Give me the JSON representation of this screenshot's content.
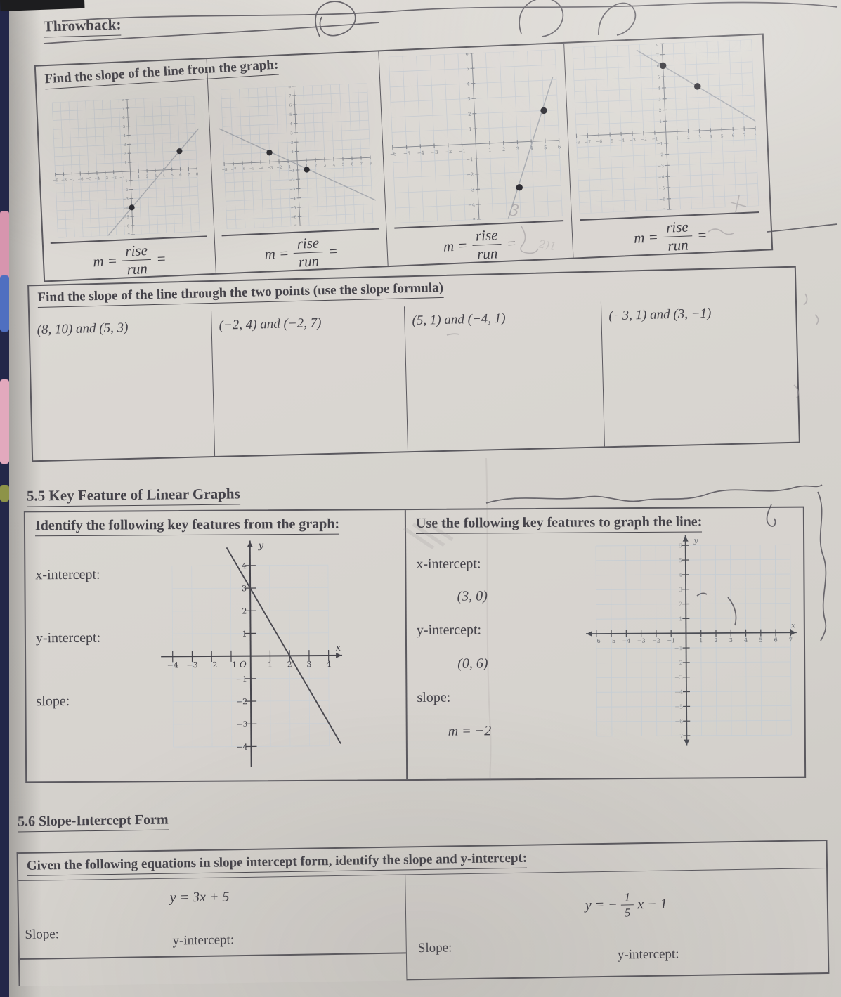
{
  "colors": {
    "paper": "#d8d5d0",
    "ink": "#45434a",
    "border": "#5b595f",
    "pen": "#55525a",
    "pencil": "#a39ea1",
    "grid": "#c6cbd1",
    "dot": "#2b2a30"
  },
  "throwback": {
    "heading": "Throwback:",
    "prompt": "Find the slope of the line from the graph:"
  },
  "formula": {
    "m": "m =",
    "rise": "rise",
    "run": "run",
    "eq": "="
  },
  "two_points": {
    "prompt": "Find the slope of the line through the two points (use the slope formula)",
    "cells": [
      "(8, 10) and (5, 3)",
      "(−2, 4) and (−2, 7)",
      "(5, 1) and (−4, 1)",
      "(−3, 1) and (3, −1)"
    ]
  },
  "section_55": {
    "heading": "5.5 Key Feature of Linear Graphs",
    "identify": {
      "prompt": "Identify the following key features from the graph:",
      "labels": [
        "x-intercept:",
        "y-intercept:",
        "slope:"
      ]
    },
    "use": {
      "prompt": "Use the following key features to graph the line:",
      "x_label": "x-intercept:",
      "x_value": "(3, 0)",
      "y_label": "y-intercept:",
      "y_value": "(0, 6)",
      "slope_label": "slope:",
      "slope_value": "m = −2"
    }
  },
  "section_56": {
    "heading": "5.6 Slope-Intercept Form",
    "prompt": "Given the following equations in slope intercept form, identify the slope and y-intercept:",
    "left": {
      "equation": "y = 3x + 5",
      "slope_label": "Slope:",
      "y_label": "y-intercept:"
    },
    "right": {
      "eq_pre": "y = −",
      "num": "1",
      "den": "5",
      "eq_post": "x − 1",
      "slope_label": "Slope:",
      "y_label": "y-intercept:"
    }
  },
  "annotations": {
    "pencil_a": "3",
    "pencil_b": "2)1"
  },
  "graphs": {
    "g1": {
      "xmin": -9,
      "xmax": 8,
      "ymin": -7,
      "ymax": 8,
      "line": [
        [
          -3.4,
          -7.4
        ],
        [
          8.4,
          4.4
        ]
      ],
      "dots": [
        [
          0,
          -4
        ],
        [
          6,
          2
        ]
      ],
      "fs": 6,
      "tickLen": 3,
      "gridColor": "#c6cbd1",
      "axisColor": "#84878e",
      "axisW": 1,
      "labColor": "#7e8289",
      "lineColor": "#a6a9af",
      "lineW": 1.5,
      "dotR": 4.6
    },
    "g2": {
      "xmin": -8,
      "xmax": 8,
      "ymin": -7,
      "ymax": 8,
      "line": [
        [
          -8.4,
          3.8
        ],
        [
          8.4,
          -4.6
        ]
      ],
      "dots": [
        [
          -3,
          1
        ],
        [
          1,
          -1
        ]
      ],
      "fs": 6,
      "tickLen": 3,
      "gridColor": "#c6cbd1",
      "axisColor": "#84878e",
      "axisW": 1,
      "labColor": "#7e8289",
      "lineColor": "#a6a9af",
      "lineW": 1.5,
      "dotR": 4.6
    },
    "g3": {
      "xmin": -6,
      "xmax": 6,
      "ymin": -5,
      "ymax": 6,
      "line": [
        [
          1.95,
          -5.4
        ],
        [
          5.75,
          4.2
        ]
      ],
      "dots": [
        [
          3,
          -3
        ],
        [
          5,
          2
        ]
      ],
      "fs": 7,
      "tickLen": 3,
      "gridColor": "#c6cbd1",
      "axisColor": "#84878e",
      "axisW": 1,
      "labColor": "#7e8289",
      "lineColor": "#a6a9af",
      "lineW": 1.5,
      "dotR": 4.8
    },
    "g4": {
      "xmin": -8,
      "xmax": 8,
      "ymin": -7,
      "ymax": 8,
      "line": [
        [
          -2.3,
          7.5
        ],
        [
          8.4,
          0.4
        ]
      ],
      "dots": [
        [
          0,
          6
        ],
        [
          3,
          4
        ]
      ],
      "fs": 6,
      "tickLen": 3,
      "gridColor": "#c6cbd1",
      "axisColor": "#84878e",
      "axisW": 1,
      "labColor": "#7e8289",
      "lineColor": "#a6a9af",
      "lineW": 1.5,
      "dotR": 4.8
    },
    "identify": {
      "xmin": -4.6,
      "xmax": 4.7,
      "ymin": -4.9,
      "ymax": 5.1,
      "grid": [
        -4,
        4,
        -4,
        4
      ],
      "line": [
        [
          -1.2,
          4.8
        ],
        [
          4.6,
          -3.9
        ]
      ],
      "dots": [],
      "fs": 11,
      "tickLen": 8,
      "gridColor": "#ccd1d6",
      "axisColor": "#46454c",
      "axisW": 2,
      "labColor": "#3f3e45",
      "lineColor": "#4a4950",
      "lineW": 1.9,
      "arrows": [
        "xr",
        "yt"
      ],
      "axis_x": "x",
      "axis_y": "y",
      "origin": "O"
    },
    "plot": {
      "xmin": -6.7,
      "xmax": 7.4,
      "ymin": -7.7,
      "ymax": 6.7,
      "grid": [
        -6,
        7,
        -7,
        6
      ],
      "dots": [],
      "fs": 8,
      "tickLen": 5,
      "gridColor": "#c5cdd4",
      "axisColor": "#4c4e55",
      "axisW": 1.8,
      "labColor": "#686c72",
      "yFaint": true,
      "arrows": [
        "xr",
        "xl",
        "yt",
        "yb"
      ],
      "axis_x": "x",
      "axis_y": "y"
    }
  }
}
